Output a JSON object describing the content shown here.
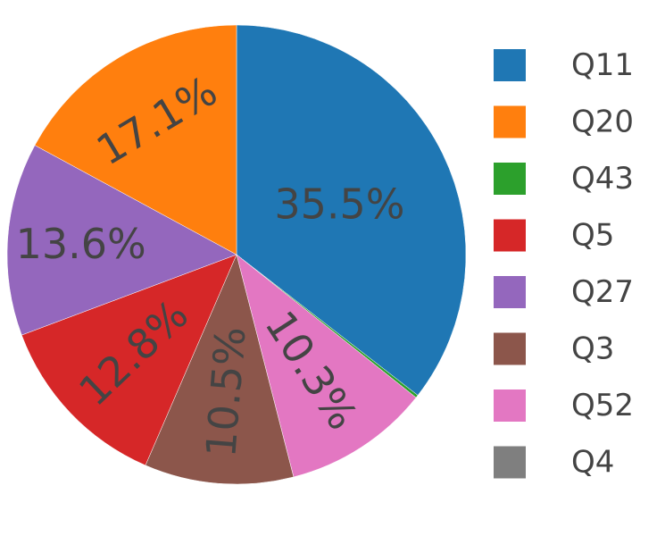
{
  "chart_data": {
    "type": "pie",
    "categories": [
      "Q11",
      "Q20",
      "Q43",
      "Q5",
      "Q27",
      "Q3",
      "Q52",
      "Q4"
    ],
    "values": [
      35.5,
      17.1,
      0.2,
      12.8,
      13.6,
      10.5,
      10.3,
      0
    ],
    "value_labels": [
      "35.5%",
      "17.1%",
      null,
      "12.8%",
      "13.6%",
      "10.5%",
      "10.3%",
      null
    ],
    "colors": [
      "#1f77b4",
      "#ff7f0e",
      "#2ca02c",
      "#d62728",
      "#9467bd",
      "#8c564b",
      "#e377c2",
      "#7f7f7f"
    ],
    "legend": "right"
  }
}
